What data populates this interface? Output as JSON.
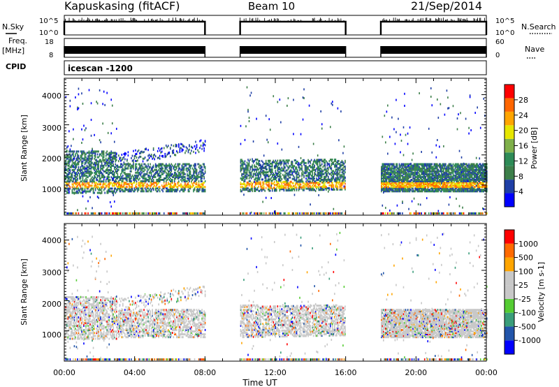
{
  "header": {
    "station": "Kapuskasing (fitACF)",
    "beam": "Beam 10",
    "date": "21/Sep/2014"
  },
  "left_labels": {
    "nsky": "N.Sky",
    "freq": "Freq.",
    "freq_unit": "[MHz]",
    "cpid": "CPID"
  },
  "right_labels": {
    "nsearch": "N.Search",
    "nave": "Nave"
  },
  "cpid_text": "icescan -1200",
  "colors": {
    "power_scale": [
      "#0000ff",
      "#1f3fa6",
      "#3d7f4a",
      "#2e8b57",
      "#7fb04a",
      "#e6e600",
      "#ffa500",
      "#ff6600",
      "#ff0000"
    ],
    "velocity_scale": [
      "#ff0000",
      "#ff6a00",
      "#ffa500",
      "#c8c8c8",
      "#c8c8c8",
      "#55cc33",
      "#3a9d7a",
      "#2255aa",
      "#0000ff"
    ]
  },
  "chart_data": [
    {
      "type": "line",
      "panel": "noise",
      "ylabels": [
        "10^5",
        "10^0"
      ],
      "ylabels_right": [
        "10^5",
        "10^0"
      ],
      "x_segments_hours": [
        [
          0,
          8
        ],
        [
          10,
          16
        ],
        [
          18,
          24
        ]
      ]
    },
    {
      "type": "line",
      "panel": "frequency",
      "yticks_left": [
        "18",
        "8"
      ],
      "yticks_right": [
        "60",
        "0"
      ],
      "x_segments_hours": [
        [
          0,
          8
        ],
        [
          10,
          16
        ],
        [
          18,
          24
        ]
      ]
    },
    {
      "type": "heatmap",
      "panel": "power",
      "ylabel": "Slant Range [km]",
      "yticks": [
        "1000",
        "2000",
        "3000",
        "4000"
      ],
      "ylim": [
        180,
        4500
      ],
      "colorbar_label": "Power [dB]",
      "colorbar_ticks": [
        "4",
        "8",
        "12",
        "16",
        "20",
        "24",
        "28"
      ]
    },
    {
      "type": "heatmap",
      "panel": "velocity",
      "ylabel": "Slant Range [km]",
      "yticks": [
        "1000",
        "2000",
        "3000",
        "4000"
      ],
      "ylim": [
        180,
        4500
      ],
      "colorbar_label": "Velocity [m s-1]",
      "colorbar_ticks": [
        "1000",
        "500",
        "100",
        "25",
        "-25",
        "-100",
        "-500",
        "-1000"
      ]
    }
  ],
  "xaxis": {
    "ticks": [
      "00:00",
      "04:00",
      "08:00",
      "12:00",
      "16:00",
      "20:00",
      "00:00"
    ],
    "label": "Time UT",
    "xlim_hours": [
      0,
      24
    ]
  }
}
